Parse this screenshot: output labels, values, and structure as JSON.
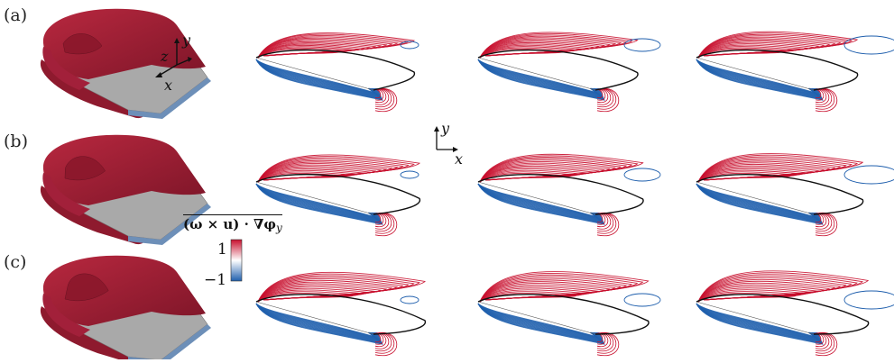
{
  "rows": [
    {
      "label": "(a)",
      "letter": "a",
      "separation": 0.25
    },
    {
      "label": "(b)",
      "letter": "b",
      "separation": 0.55
    },
    {
      "label": "(c)",
      "letter": "c",
      "separation": 0.85
    }
  ],
  "axes3d": {
    "x": "x",
    "y": "y",
    "z": "z"
  },
  "axes2d": {
    "x": "x",
    "y": "y"
  },
  "colorbar": {
    "title": "(ω × u) · ∇φ",
    "subscript": "y",
    "max_label": "1",
    "min_label": "−1",
    "max_color": "#c8102e",
    "mid_color": "#ffffff",
    "min_color": "#1f5fad"
  },
  "colors": {
    "positive": "#c8102e",
    "negative": "#1f5fad",
    "wing": "#9e1b32",
    "plate": "#a9a9a9",
    "outline": "#111111"
  },
  "panels_per_row": 3
}
